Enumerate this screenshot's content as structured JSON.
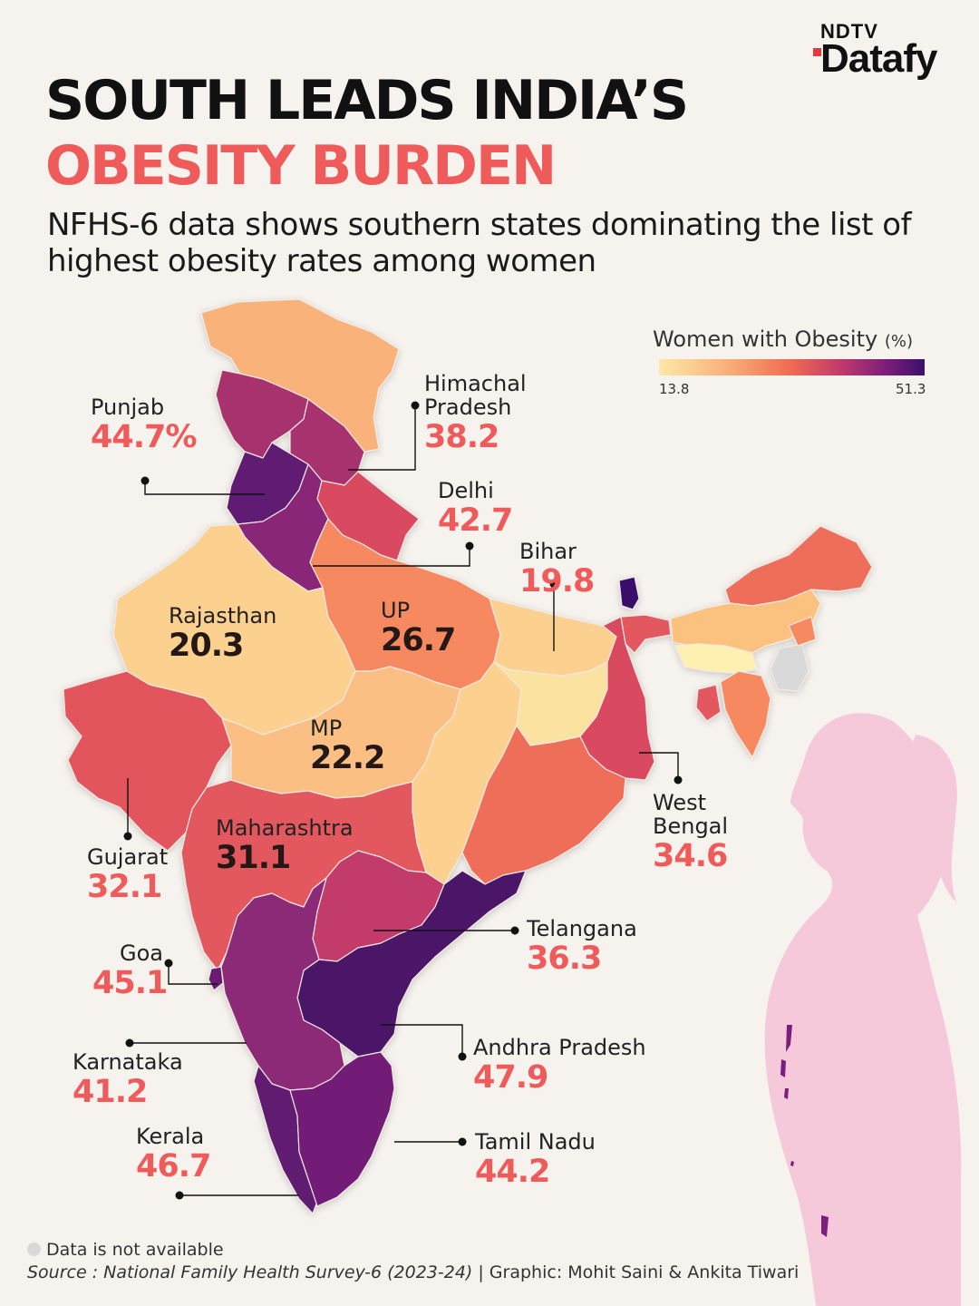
{
  "brand": {
    "top": "NDTV",
    "main": "Datafy"
  },
  "title": {
    "line1": "SOUTH LEADS INDIA’S",
    "line2": "OBESITY BURDEN"
  },
  "subtitle": "NFHS-6 data shows southern states dominating the list of highest obesity rates among women",
  "legend": {
    "title": "Women with Obesity",
    "unit": "(%)",
    "min": "13.8",
    "max": "51.3"
  },
  "colors": {
    "accent": "#ef5b5b",
    "background": "#f6f3ee",
    "not_available": "#d9d9d9",
    "silhouette": "#f5c9da"
  },
  "states": [
    {
      "key": "punjab",
      "name": "Punjab",
      "value": "44.7%"
    },
    {
      "key": "himachal",
      "name": "Himachal Pradesh",
      "name_line1": "Himachal",
      "name_line2": "Pradesh",
      "value": "38.2"
    },
    {
      "key": "delhi",
      "name": "Delhi",
      "value": "42.7"
    },
    {
      "key": "bihar",
      "name": "Bihar",
      "value": "19.8"
    },
    {
      "key": "rajasthan",
      "name": "Rajasthan",
      "value": "20.3"
    },
    {
      "key": "up",
      "name": "UP",
      "value": "26.7"
    },
    {
      "key": "mp",
      "name": "MP",
      "value": "22.2"
    },
    {
      "key": "west_bengal",
      "name": "West Bengal",
      "name_line1": "West",
      "name_line2": "Bengal",
      "value": "34.6"
    },
    {
      "key": "maharashtra",
      "name": "Maharashtra",
      "value": "31.1"
    },
    {
      "key": "gujarat",
      "name": "Gujarat",
      "value": "32.1"
    },
    {
      "key": "telangana",
      "name": "Telangana",
      "value": "36.3"
    },
    {
      "key": "goa",
      "name": "Goa",
      "value": "45.1"
    },
    {
      "key": "andhra",
      "name": "Andhra Pradesh",
      "value": "47.9"
    },
    {
      "key": "karnataka",
      "name": "Karnataka",
      "value": "41.2"
    },
    {
      "key": "kerala",
      "name": "Kerala",
      "value": "46.7"
    },
    {
      "key": "tamil_nadu",
      "name": "Tamil Nadu",
      "value": "44.2"
    }
  ],
  "footer": {
    "not_available": "Data is not available",
    "source_label": "Source : National Family Health Survey-6 (2023-24)",
    "credit": " | Graphic: Mohit Saini & Ankita Tiwari"
  }
}
